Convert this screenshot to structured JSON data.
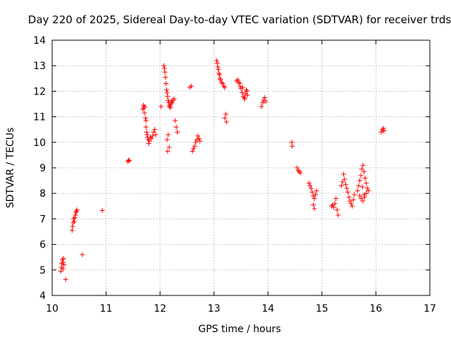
{
  "chart_data": {
    "type": "scatter",
    "title": "Day 220 of 2025, Sidereal Day-to-day VTEC variation (SDTVAR) for receiver trds",
    "xlabel": "GPS time / hours",
    "ylabel": "SDTVAR / TECUs",
    "xlim": [
      10,
      17
    ],
    "ylim": [
      4,
      14
    ],
    "xticks": [
      "10",
      "11",
      "12",
      "13",
      "14",
      "15",
      "16",
      "17"
    ],
    "yticks": [
      "4",
      "5",
      "6",
      "7",
      "8",
      "9",
      "10",
      "11",
      "12",
      "13",
      "14"
    ],
    "grid": true,
    "marker": "+",
    "color": "#ff0000",
    "series": [
      {
        "name": "SDTVAR",
        "x": [
          10.16,
          10.17,
          10.18,
          10.19,
          10.2,
          10.2,
          10.21,
          10.22,
          10.25,
          10.37,
          10.38,
          10.39,
          10.4,
          10.41,
          10.42,
          10.43,
          10.44,
          10.45,
          10.46,
          10.56,
          10.93,
          11.4,
          11.42,
          11.43,
          11.68,
          11.69,
          11.7,
          11.71,
          11.72,
          11.73,
          11.74,
          11.74,
          11.75,
          11.76,
          11.77,
          11.78,
          11.79,
          11.8,
          11.82,
          11.84,
          11.86,
          11.88,
          11.9,
          11.92,
          12.02,
          12.07,
          12.08,
          12.09,
          12.1,
          12.11,
          12.12,
          12.13,
          12.14,
          12.15,
          12.16,
          12.17,
          12.18,
          12.19,
          12.2,
          12.21,
          12.22,
          12.24,
          12.26,
          12.28,
          12.3,
          12.32,
          12.13,
          12.15,
          12.17,
          12.14,
          12.55,
          12.58,
          12.6,
          12.62,
          12.64,
          12.66,
          12.68,
          12.7,
          12.72,
          12.74,
          13.05,
          13.06,
          13.07,
          13.08,
          13.09,
          13.1,
          13.11,
          13.12,
          13.14,
          13.16,
          13.18,
          13.2,
          13.2,
          13.22,
          13.23,
          13.42,
          13.44,
          13.46,
          13.48,
          13.5,
          13.52,
          13.54,
          13.56,
          13.58,
          13.6,
          13.62,
          13.48,
          13.53,
          13.57,
          13.61,
          13.88,
          13.9,
          13.92,
          13.94,
          13.96,
          14.44,
          14.45,
          14.54,
          14.56,
          14.58,
          14.6,
          14.76,
          14.78,
          14.8,
          14.82,
          14.84,
          14.86,
          14.88,
          14.9,
          14.84,
          14.86,
          15.18,
          15.2,
          15.22,
          15.24,
          15.26,
          15.28,
          15.3,
          15.36,
          15.38,
          15.4,
          15.42,
          15.44,
          15.46,
          15.48,
          15.5,
          15.52,
          15.54,
          15.56,
          15.58,
          15.6,
          15.66,
          15.68,
          15.7,
          15.72,
          15.74,
          15.76,
          15.78,
          15.8,
          15.82,
          15.84,
          15.86,
          15.7,
          15.73,
          15.76,
          15.79,
          15.82,
          15.75,
          15.78,
          16.1,
          16.12,
          16.14,
          16.15
        ],
        "y": [
          4.95,
          5.1,
          5.25,
          5.4,
          5.05,
          5.3,
          5.45,
          5.2,
          4.63,
          6.55,
          6.7,
          6.85,
          7.0,
          6.9,
          7.05,
          7.15,
          7.25,
          7.3,
          7.35,
          5.6,
          7.33,
          9.25,
          9.3,
          9.28,
          11.3,
          11.45,
          11.35,
          11.15,
          11.4,
          10.95,
          10.85,
          10.6,
          10.4,
          10.3,
          10.2,
          10.1,
          9.95,
          10.05,
          10.2,
          10.15,
          10.25,
          10.4,
          10.5,
          10.3,
          11.4,
          13.0,
          12.9,
          12.75,
          12.55,
          12.3,
          12.05,
          11.95,
          11.8,
          11.65,
          11.55,
          11.45,
          11.4,
          11.35,
          11.5,
          11.6,
          11.55,
          11.65,
          11.7,
          10.85,
          10.6,
          10.4,
          10.1,
          10.3,
          9.8,
          9.65,
          12.15,
          12.2,
          9.65,
          9.75,
          9.85,
          10.0,
          10.1,
          10.25,
          10.15,
          10.05,
          13.2,
          13.1,
          12.95,
          12.85,
          12.7,
          12.65,
          12.5,
          12.45,
          12.35,
          12.3,
          12.2,
          12.15,
          10.95,
          11.1,
          10.8,
          12.4,
          12.45,
          12.35,
          12.2,
          12.1,
          11.95,
          11.8,
          11.75,
          11.9,
          12.05,
          11.85,
          12.3,
          12.15,
          11.7,
          12.0,
          11.4,
          11.55,
          11.65,
          11.75,
          11.6,
          10.0,
          9.85,
          9.0,
          8.9,
          8.85,
          8.8,
          8.4,
          8.3,
          8.2,
          8.05,
          7.9,
          7.8,
          7.95,
          8.1,
          7.55,
          7.4,
          7.5,
          7.55,
          7.45,
          7.6,
          7.8,
          7.35,
          7.15,
          8.3,
          8.45,
          8.75,
          8.55,
          8.35,
          8.2,
          8.05,
          7.85,
          7.7,
          7.6,
          7.5,
          7.75,
          7.95,
          8.1,
          8.3,
          8.5,
          8.7,
          8.95,
          9.1,
          8.85,
          8.6,
          8.4,
          8.2,
          8.1,
          7.9,
          7.8,
          7.7,
          7.85,
          8.0,
          8.25,
          7.95,
          10.4,
          10.5,
          10.55,
          10.45
        ]
      }
    ]
  }
}
